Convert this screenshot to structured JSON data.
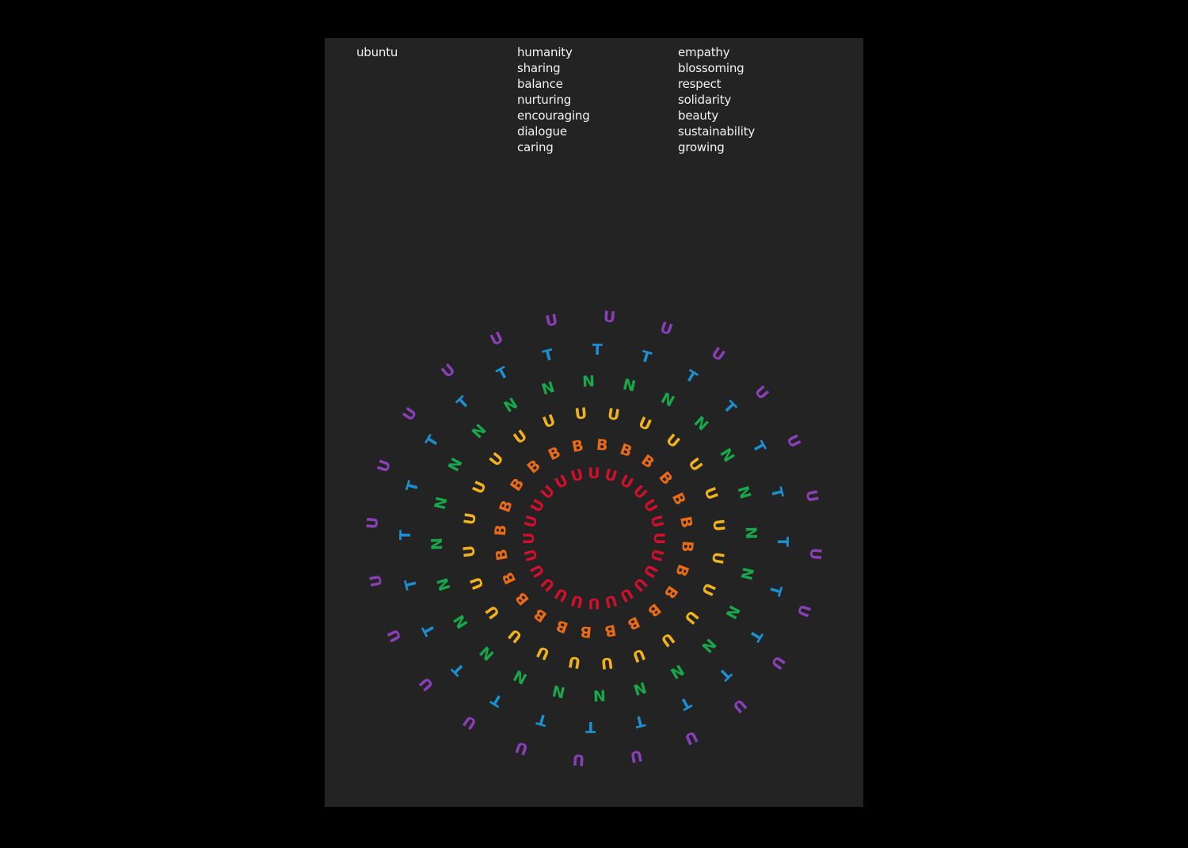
{
  "poster": {
    "title": "ubuntu",
    "words_middle": [
      "humanity",
      "sharing",
      "balance",
      "nurturing",
      "encouraging",
      "dialogue",
      "caring"
    ],
    "words_right": [
      "empathy",
      "blossoming",
      "respect",
      "solidarity",
      "beauty",
      "sustainability",
      "growing"
    ]
  },
  "artwork": {
    "word": "UBUNTU",
    "letters": [
      "U",
      "B",
      "U",
      "N",
      "T",
      "U"
    ],
    "colors": [
      "#d0102c",
      "#e86b1a",
      "#f2b21b",
      "#18a84a",
      "#1b8fd0",
      "#8a3fb8"
    ],
    "rays": 24
  }
}
